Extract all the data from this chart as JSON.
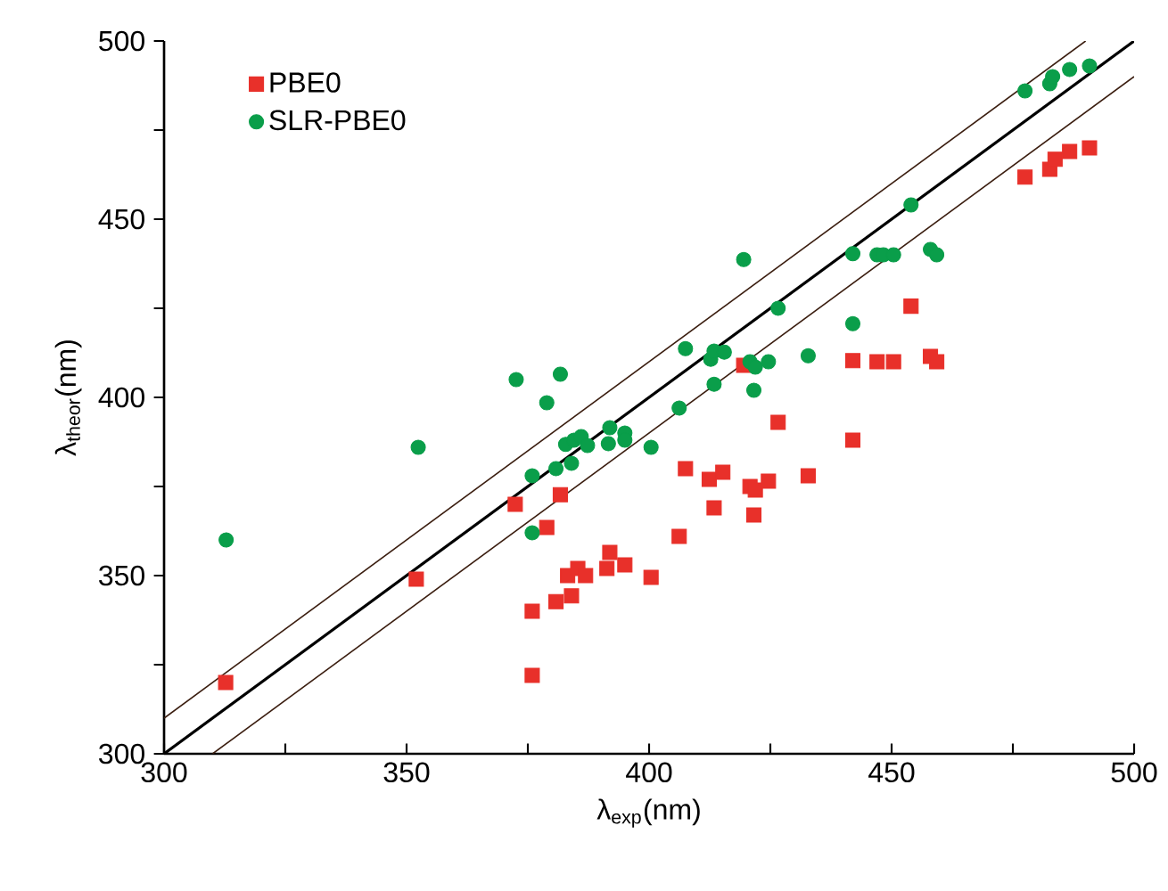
{
  "chart_data": {
    "type": "scatter",
    "xlabel": "λ$_{exp}$(nm)",
    "ylabel": "λ$_{theor}$(nm)",
    "xlim": [
      300,
      500
    ],
    "ylim": [
      300,
      500
    ],
    "xticks": [
      300,
      {
        "value": 325,
        "label": null
      },
      350,
      {
        "value": 375,
        "label": null
      },
      400,
      {
        "value": 425,
        "label": null
      },
      450,
      {
        "value": 475,
        "label": null
      },
      500
    ],
    "yticks": [
      300,
      {
        "value": 325,
        "label": null
      },
      350,
      {
        "value": 375,
        "label": null
      },
      400,
      {
        "value": 425,
        "label": null
      },
      450,
      {
        "value": 475,
        "label": null
      },
      500
    ],
    "grid": false,
    "legend": "top left",
    "series": [
      {
        "name": "PBE0",
        "color": "#e8302a",
        "marker": "square",
        "x": [
          312.7,
          352,
          372.4,
          381.7,
          378.9,
          375.9,
          375.9,
          380.8,
          384,
          383.2,
          385.3,
          386.9,
          391.9,
          391.3,
          395,
          400.4,
          406.2,
          407.5,
          412.4,
          415.2,
          413.4,
          420.8,
          421.9,
          424.6,
          421.6,
          426.6,
          432.8,
          419.5,
          442,
          442,
          447,
          450.4,
          454,
          458,
          459.3,
          477.5,
          482.6,
          483.7,
          486.7,
          490.8
        ],
        "values": [
          320,
          349,
          370,
          372.7,
          363.5,
          340,
          322,
          342.7,
          344.3,
          350,
          352,
          350,
          356.5,
          352,
          353,
          349.5,
          361,
          380,
          377,
          379,
          369,
          375,
          374,
          376.5,
          367,
          393,
          378,
          409,
          388,
          410.3,
          410,
          410,
          425.6,
          411.5,
          410,
          461.8,
          464,
          466.8,
          469,
          470
        ]
      },
      {
        "name": "SLR-PBE0",
        "color": "#0a9e4a",
        "marker": "circle",
        "x": [
          312.8,
          352.4,
          372.6,
          381.7,
          378.9,
          375.9,
          375.9,
          380.8,
          384,
          382.8,
          384.5,
          386,
          387.3,
          391.9,
          391.6,
          395,
          395,
          400.4,
          406.2,
          407.5,
          412.7,
          413.4,
          415.5,
          413.4,
          420.8,
          421.9,
          424.6,
          421.6,
          426.6,
          432.8,
          419.5,
          442,
          442,
          447,
          448.3,
          450.4,
          454,
          458,
          459.3,
          477.5,
          482.6,
          483.2,
          486.7,
          490.8
        ],
        "values": [
          360,
          386,
          405,
          406.5,
          398.5,
          378,
          362,
          380,
          381.5,
          386.8,
          388,
          389,
          386.5,
          391.5,
          387,
          390,
          388,
          386,
          397,
          413.7,
          410.7,
          413,
          412.7,
          403.7,
          410,
          408.5,
          410,
          402,
          425,
          411.7,
          438.7,
          440.3,
          420.7,
          440,
          440,
          440,
          454,
          441.5,
          440,
          486,
          488,
          490,
          492,
          493
        ]
      },
      {
        "type": "line",
        "color": "#3b1e10",
        "line_style": "solid",
        "x": [
          300,
          490
        ],
        "values": [
          310,
          500
        ]
      },
      {
        "type": "line",
        "color": "#000000",
        "line_style": "solid",
        "x": [
          300,
          500
        ],
        "values": [
          300,
          500
        ]
      },
      {
        "type": "line",
        "color": "#3b1e10",
        "line_style": "solid",
        "x": [
          310,
          500
        ],
        "values": [
          300,
          490
        ]
      }
    ]
  }
}
